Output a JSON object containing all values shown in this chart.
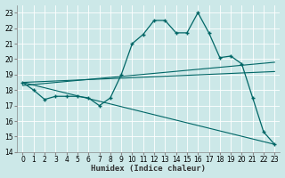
{
  "title": "",
  "xlabel": "Humidex (Indice chaleur)",
  "bg_color": "#cce8e8",
  "grid_color": "#b0d0d0",
  "line_color": "#006666",
  "xlim": [
    -0.5,
    23.5
  ],
  "ylim": [
    14,
    23.5
  ],
  "yticks": [
    14,
    15,
    16,
    17,
    18,
    19,
    20,
    21,
    22,
    23
  ],
  "xticks": [
    0,
    1,
    2,
    3,
    4,
    5,
    6,
    7,
    8,
    9,
    10,
    11,
    12,
    13,
    14,
    15,
    16,
    17,
    18,
    19,
    20,
    21,
    22,
    23
  ],
  "main_x": [
    0,
    1,
    2,
    3,
    4,
    5,
    6,
    7,
    8,
    9,
    10,
    11,
    12,
    13,
    14,
    15,
    16,
    17,
    18,
    19,
    20,
    21,
    22,
    23
  ],
  "main_y": [
    18.5,
    18.0,
    17.4,
    17.6,
    17.6,
    17.6,
    17.5,
    17.0,
    17.5,
    19.0,
    21.0,
    21.6,
    22.5,
    22.5,
    21.7,
    21.7,
    23.0,
    21.7,
    20.1,
    20.2,
    19.7,
    17.5,
    15.3,
    14.5
  ],
  "trend1_x": [
    0,
    23
  ],
  "trend1_y": [
    18.5,
    19.2
  ],
  "trend2_x": [
    0,
    23
  ],
  "trend2_y": [
    18.3,
    19.8
  ],
  "trend3_x": [
    0,
    23
  ],
  "trend3_y": [
    18.5,
    14.5
  ],
  "xlabel_fontsize": 6.5,
  "tick_fontsize": 5.5
}
